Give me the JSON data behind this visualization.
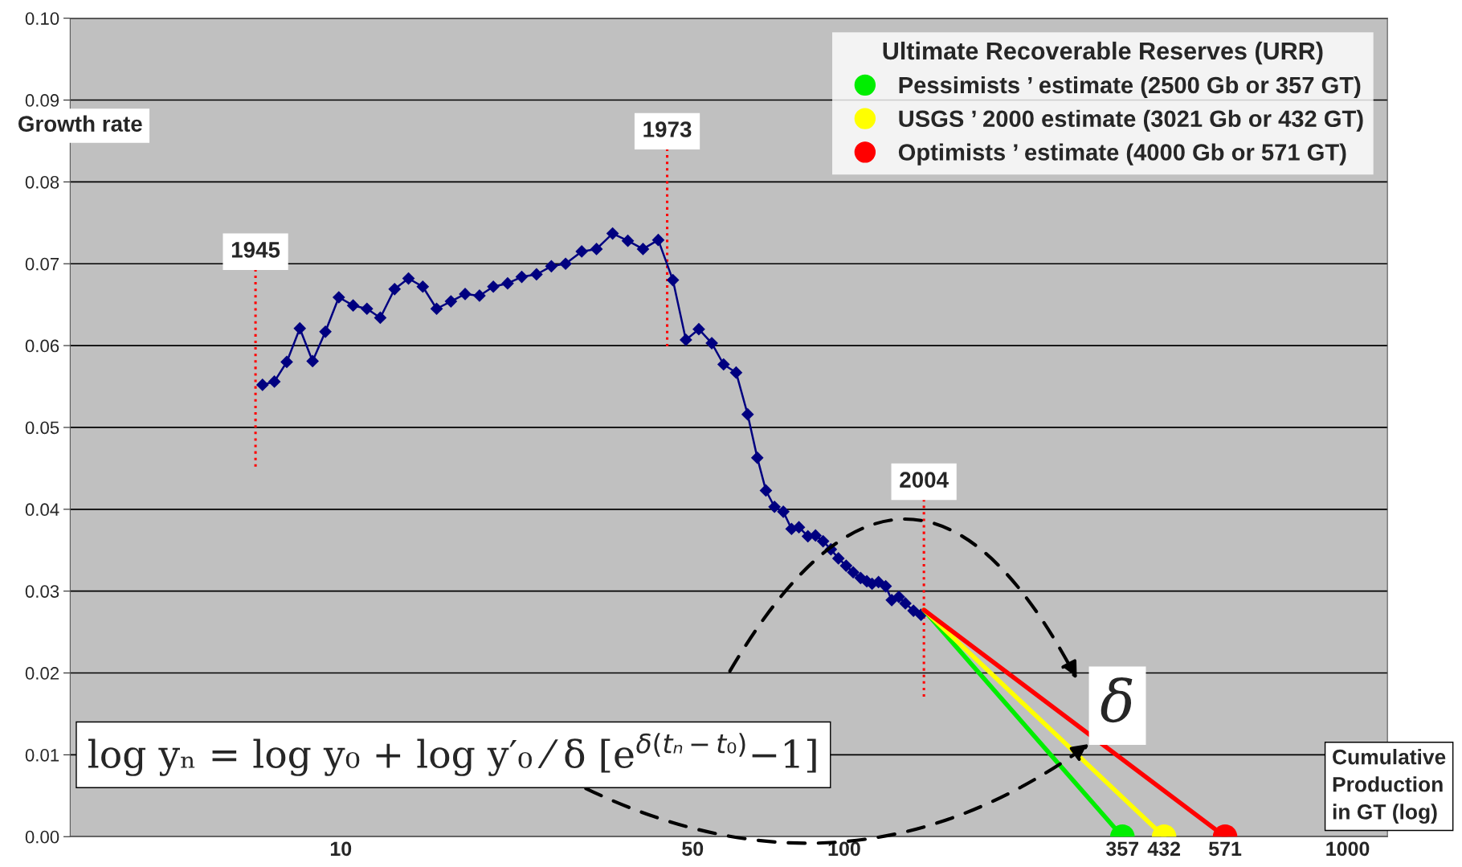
{
  "chart_data": {
    "type": "line",
    "ylabel": "Growth rate",
    "xlabel": "Cumulative Production in GT (log)",
    "legend_title": "Ultimate Recoverable Reserves (URR)",
    "log": "x",
    "xlim": [
      2.9,
      1200
    ],
    "xticks": [
      10,
      50,
      100,
      357,
      432,
      571,
      1000
    ],
    "ylim": [
      0,
      0.1
    ],
    "yticks": [
      {
        "value": 0,
        "label": "0.00"
      },
      {
        "value": 0.01,
        "label": "0.01"
      },
      {
        "value": 0.02,
        "label": "0.02"
      },
      {
        "value": 0.03,
        "label": "0.03"
      },
      {
        "value": 0.04,
        "label": "0.04"
      },
      {
        "value": 0.05,
        "label": "0.05"
      },
      {
        "value": 0.06,
        "label": "0.06"
      },
      {
        "value": 0.07,
        "label": "0.07"
      },
      {
        "value": 0.08,
        "label": "0.08"
      },
      {
        "value": 0.09,
        "label": "0.09"
      },
      {
        "value": 0.1,
        "label": "0.10"
      }
    ],
    "grid": "y",
    "legend": "top right",
    "series": [
      {
        "color": "#000080",
        "marker": "diamond",
        "x": [
          6.99,
          7.38,
          7.81,
          8.29,
          8.79,
          9.32,
          9.91,
          10.58,
          11.27,
          11.98,
          12.79,
          13.63,
          14.55,
          15.5,
          16.55,
          17.66,
          18.86,
          20.09,
          21.45,
          22.88,
          24.48,
          26.2,
          27.96,
          30.1,
          32.21,
          34.67,
          37.17,
          39.84,
          42.72,
          45.68,
          48.48,
          51.43,
          54.57,
          57.6,
          61.0,
          64.3,
          67.2,
          69.9,
          72.7,
          75.7,
          78.6,
          81.3,
          84.7,
          87.7,
          90.8,
          94.1,
          97.4,
          100.9,
          104.2,
          107.8,
          110.9,
          113.6,
          117.0,
          120.9,
          124.3,
          128.4,
          132.3,
          137.3,
          142.1
        ],
        "values": [
          0.0552,
          0.0556,
          0.058,
          0.0621,
          0.0581,
          0.0617,
          0.0659,
          0.0649,
          0.0645,
          0.0634,
          0.0669,
          0.0682,
          0.0672,
          0.0645,
          0.0654,
          0.0663,
          0.0661,
          0.0672,
          0.0676,
          0.0684,
          0.0687,
          0.0697,
          0.07,
          0.0715,
          0.0718,
          0.0737,
          0.0728,
          0.0718,
          0.0729,
          0.068,
          0.0607,
          0.062,
          0.0603,
          0.0577,
          0.0567,
          0.0516,
          0.0463,
          0.0423,
          0.0403,
          0.0397,
          0.0376,
          0.0378,
          0.0367,
          0.0368,
          0.0361,
          0.0351,
          0.034,
          0.0331,
          0.0323,
          0.0316,
          0.0312,
          0.0309,
          0.0311,
          0.0306,
          0.0289,
          0.0293,
          0.0285,
          0.0276,
          0.0271
        ]
      },
      {
        "name": "Pessimists ’ estimate (2500 Gb or 357 GT)",
        "color": "#00ee00",
        "marker": "circle",
        "x": [
          144,
          357
        ],
        "values": [
          0.0277,
          0
        ]
      },
      {
        "name": "USGS ’ 2000 estimate (3021 Gb or 432 GT)",
        "color": "#ffff00",
        "marker": "circle",
        "x": [
          144,
          432
        ],
        "values": [
          0.0277,
          0
        ]
      },
      {
        "name": "Optimists ’ estimate (4000 Gb or 571 GT)",
        "color": "#ff0000",
        "marker": "circle",
        "x": [
          144,
          571
        ],
        "values": [
          0.0277,
          0
        ]
      }
    ],
    "ref_lines": [
      {
        "axis": "x",
        "value": 6.77,
        "color": "#ff0000",
        "line_style": "dotted"
      },
      {
        "axis": "x",
        "value": 44.5,
        "color": "#ff0000",
        "line_style": "dotted"
      },
      {
        "axis": "x",
        "value": 144,
        "color": "#ff0000",
        "line_style": "dotted"
      }
    ],
    "annotations": [
      "log yₙ = log y₀ + log y′₀ ⁄ δ [e$^{δ(tₙ−t₀)}$−1]",
      "δ",
      "1945",
      "1973",
      "2004"
    ]
  }
}
